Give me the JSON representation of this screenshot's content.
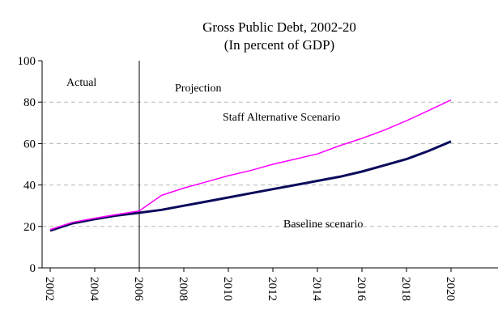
{
  "chart_data": {
    "type": "line",
    "title": "Gross Public Debt, 2002-20",
    "subtitle": "(In percent of GDP)",
    "xlabel": "",
    "ylabel": "",
    "ylim": [
      0,
      100
    ],
    "xlim": [
      2002,
      2020
    ],
    "yticks": [
      0,
      20,
      40,
      60,
      80,
      100
    ],
    "xticks": [
      "2002",
      "2004",
      "2006",
      "2008",
      "2010",
      "2012",
      "2014",
      "2016",
      "2018",
      "2020"
    ],
    "grid": "horizontal dashed at 20, 40, 60, 80",
    "projection_start": 2006,
    "x": [
      2002,
      2003,
      2004,
      2005,
      2006,
      2007,
      2008,
      2009,
      2010,
      2011,
      2012,
      2013,
      2014,
      2015,
      2016,
      2017,
      2018,
      2019,
      2020
    ],
    "series": [
      {
        "name": "Baseline scenario",
        "color": "#0a0a5c",
        "values": [
          18,
          21.5,
          23.5,
          25.3,
          26.6,
          28,
          30,
          32,
          34,
          36,
          38,
          40,
          42,
          44,
          46.5,
          49.5,
          52.5,
          56.5,
          61
        ]
      },
      {
        "name": "Staff Alternative Scenario",
        "color": "#ff00ff",
        "values": [
          18.5,
          22,
          24,
          25.8,
          27.5,
          35,
          38.5,
          41.5,
          44.5,
          47,
          50,
          52.5,
          55,
          59,
          62.5,
          66.5,
          71,
          76,
          81
        ]
      }
    ],
    "annotations": {
      "actual": "Actual",
      "projection": "Projection"
    }
  }
}
